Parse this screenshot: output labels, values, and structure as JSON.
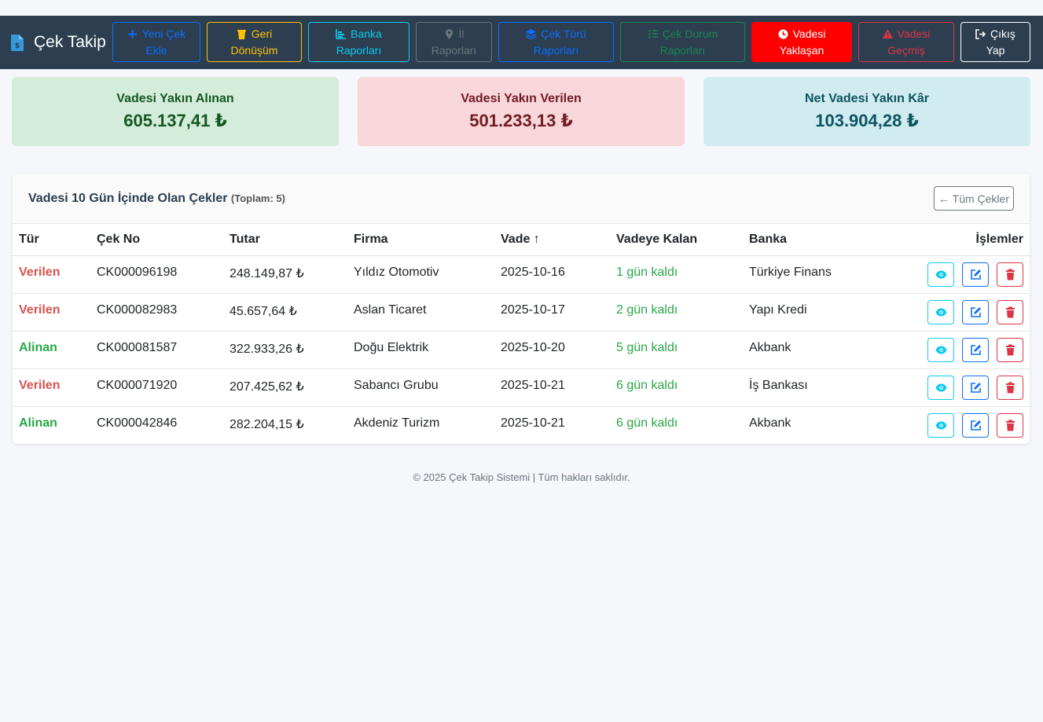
{
  "app": {
    "brand": "Çek Takip"
  },
  "nav": [
    {
      "key": "new",
      "line1": "Yeni Çek",
      "line2": "Ekle",
      "icon": "plus-icon",
      "color": "#0d6efd"
    },
    {
      "key": "refund",
      "line1": "Geri",
      "line2": "Dönüşüm",
      "icon": "trash-icon",
      "color": "#ffc107"
    },
    {
      "key": "bank",
      "line1": "Banka",
      "line2": "Raporları",
      "icon": "chart-icon",
      "color": "#0dcaf0"
    },
    {
      "key": "city",
      "line1": "İl",
      "line2": "Raporları",
      "icon": "map-pin-icon",
      "color": "#6c757d"
    },
    {
      "key": "type",
      "line1": "Çek Türü",
      "line2": "Raporları",
      "icon": "layers-icon",
      "color": "#0d6efd"
    },
    {
      "key": "status",
      "line1": "Çek Durum",
      "line2": "Raporları",
      "icon": "list-check-icon",
      "color": "#198754"
    },
    {
      "key": "upcoming",
      "line1": "Vadesi",
      "line2": "Yaklaşan",
      "icon": "clock-icon",
      "color": "#ff0000"
    },
    {
      "key": "overdue",
      "line1": "Vadesi",
      "line2": "Geçmiş",
      "icon": "warning-icon",
      "color": "#dc3545"
    },
    {
      "key": "logout",
      "line1": "Çıkış",
      "line2": "Yap",
      "icon": "logout-icon",
      "color": "#ffffff"
    }
  ],
  "summary": [
    {
      "title": "Vadesi Yakın Alınan",
      "value": "605.137,41 ₺"
    },
    {
      "title": "Vadesi Yakın Verilen",
      "value": "501.233,13 ₺"
    },
    {
      "title": "Net Vadesi Yakın Kâr",
      "value": "103.904,28 ₺"
    }
  ],
  "panel": {
    "title": "Vadesi 10 Gün İçinde Olan Çekler",
    "total": "(Toplam: 5)",
    "all_button": "← Tüm Çekler"
  },
  "table": {
    "headers": [
      "Tür",
      "Çek No",
      "Tutar",
      "Firma",
      "Vade ↑",
      "Vadeye Kalan",
      "Banka",
      "İşlemler"
    ],
    "rows": [
      {
        "type": "Verilen",
        "no": "CK000096198",
        "amount": "248.149,87 ₺",
        "firm": "Yıldız Otomotiv",
        "due": "2025-10-16",
        "remain": "1 gün kaldı",
        "bank": "Türkiye Finans"
      },
      {
        "type": "Verilen",
        "no": "CK000082983",
        "amount": "45.657,64 ₺",
        "firm": "Aslan Ticaret",
        "due": "2025-10-17",
        "remain": "2 gün kaldı",
        "bank": "Yapı Kredi"
      },
      {
        "type": "Alinan",
        "no": "CK000081587",
        "amount": "322.933,26 ₺",
        "firm": "Doğu Elektrik",
        "due": "2025-10-20",
        "remain": "5 gün kaldı",
        "bank": "Akbank"
      },
      {
        "type": "Verilen",
        "no": "CK000071920",
        "amount": "207.425,62 ₺",
        "firm": "Sabancı Grubu",
        "due": "2025-10-21",
        "remain": "6 gün kaldı",
        "bank": "İş Bankası"
      },
      {
        "type": "Alinan",
        "no": "CK000042846",
        "amount": "282.204,15 ₺",
        "firm": "Akdeniz Turizm",
        "due": "2025-10-21",
        "remain": "6 gün kaldı",
        "bank": "Akbank"
      }
    ]
  },
  "footer": "© 2025 Çek Takip Sistemi | Tüm hakları saklıdır."
}
